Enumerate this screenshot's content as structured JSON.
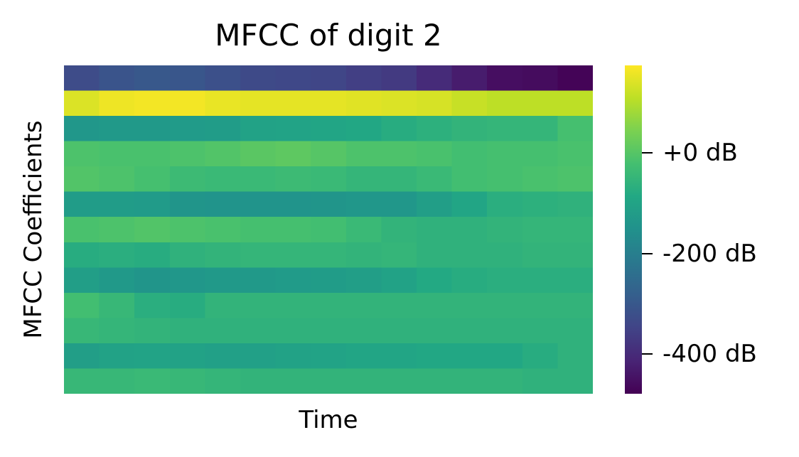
{
  "chart_data": {
    "type": "heatmap",
    "title": "MFCC of digit 2",
    "xlabel": "Time",
    "ylabel": "MFCC Coefficients",
    "colormap": "viridis",
    "vmin": -480,
    "vmax": 175,
    "colorbar": {
      "ticks": [
        {
          "value": 0,
          "label": "+0 dB"
        },
        {
          "value": -200,
          "label": "-200 dB"
        },
        {
          "value": -400,
          "label": "-400 dB"
        }
      ]
    },
    "x_tick_labels": [],
    "y_tick_labels": [],
    "values": [
      [
        -330,
        -310,
        -300,
        -305,
        -320,
        -335,
        -340,
        -345,
        -360,
        -370,
        -400,
        -430,
        -455,
        -460,
        -475
      ],
      [
        140,
        160,
        165,
        165,
        155,
        150,
        150,
        150,
        145,
        140,
        135,
        120,
        110,
        110,
        110
      ],
      [
        -135,
        -130,
        -130,
        -125,
        -120,
        -105,
        -100,
        -95,
        -90,
        -75,
        -65,
        -55,
        -50,
        -50,
        -20
      ],
      [
        -10,
        -15,
        -15,
        -10,
        -5,
        5,
        10,
        0,
        -10,
        -10,
        -15,
        -25,
        -20,
        -20,
        -15
      ],
      [
        -5,
        -10,
        -20,
        -35,
        -40,
        -40,
        -35,
        -40,
        -50,
        -50,
        -40,
        -25,
        -20,
        -15,
        -10
      ],
      [
        -120,
        -120,
        -125,
        -140,
        -145,
        -145,
        -145,
        -140,
        -135,
        -135,
        -115,
        -95,
        -70,
        -65,
        -60
      ],
      [
        -15,
        -10,
        -5,
        -10,
        -15,
        -20,
        -20,
        -25,
        -40,
        -55,
        -60,
        -60,
        -55,
        -50,
        -50
      ],
      [
        -75,
        -70,
        -75,
        -60,
        -55,
        -50,
        -50,
        -50,
        -55,
        -50,
        -60,
        -60,
        -60,
        -55,
        -55
      ],
      [
        -115,
        -130,
        -140,
        -135,
        -130,
        -130,
        -125,
        -120,
        -115,
        -105,
        -85,
        -75,
        -70,
        -70,
        -70
      ],
      [
        -25,
        -45,
        -70,
        -75,
        -55,
        -55,
        -55,
        -55,
        -55,
        -55,
        -55,
        -55,
        -55,
        -55,
        -55
      ],
      [
        -45,
        -50,
        -55,
        -60,
        -60,
        -60,
        -60,
        -60,
        -60,
        -60,
        -60,
        -60,
        -60,
        -60,
        -60
      ],
      [
        -115,
        -105,
        -100,
        -105,
        -110,
        -110,
        -105,
        -100,
        -95,
        -95,
        -90,
        -90,
        -90,
        -75,
        -60
      ],
      [
        -45,
        -45,
        -40,
        -45,
        -50,
        -55,
        -55,
        -55,
        -55,
        -55,
        -55,
        -55,
        -55,
        -60,
        -60
      ]
    ]
  }
}
